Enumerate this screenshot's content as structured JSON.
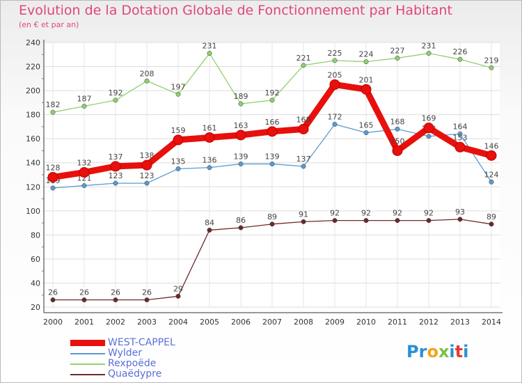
{
  "title": "Evolution de la Dotation Globale de Fonctionnement par Habitant",
  "subtitle": "(en € et par an)",
  "logo": {
    "text": "Proxiti",
    "letters": [
      "P",
      "r",
      "o",
      "x",
      "i",
      "t",
      "i"
    ],
    "colors": [
      "#2a8fd6",
      "#2a8fd6",
      "#f5a21b",
      "#7cc142",
      "#2a8fd6",
      "#e63a2e",
      "#2a8fd6"
    ]
  },
  "chart_data": {
    "type": "line",
    "x": [
      "2000",
      "2001",
      "2002",
      "2003",
      "2004",
      "2005",
      "2006",
      "2007",
      "2008",
      "2009",
      "2010",
      "2011",
      "2012",
      "2013",
      "2014"
    ],
    "ylim": [
      20,
      240
    ],
    "yticks": [
      20,
      40,
      60,
      80,
      100,
      120,
      140,
      160,
      180,
      200,
      220,
      240
    ],
    "grid": true,
    "legend_position": "bottom-left",
    "series": [
      {
        "name": "Rexpoëde",
        "color": "#8fd16a",
        "values": [
          182,
          187,
          192,
          208,
          197,
          231,
          189,
          192,
          221,
          225,
          224,
          227,
          231,
          226,
          219
        ]
      },
      {
        "name": "Wylder",
        "color": "#5b9bd0",
        "values": [
          119,
          121,
          123,
          123,
          135,
          136,
          139,
          139,
          137,
          172,
          165,
          168,
          162,
          164,
          124
        ]
      },
      {
        "name": "Quaëdypre",
        "color": "#6b2a2a",
        "values": [
          26,
          26,
          26,
          26,
          29,
          84,
          86,
          89,
          91,
          92,
          92,
          92,
          92,
          93,
          89
        ]
      },
      {
        "name": "WEST-CAPPEL",
        "color": "#e8100c",
        "values": [
          128,
          132,
          137,
          138,
          159,
          161,
          163,
          166,
          168,
          205,
          201,
          150,
          169,
          153,
          146
        ]
      }
    ],
    "legend_order": [
      "WEST-CAPPEL",
      "Wylder",
      "Rexpoëde",
      "Quaëdypre"
    ]
  }
}
